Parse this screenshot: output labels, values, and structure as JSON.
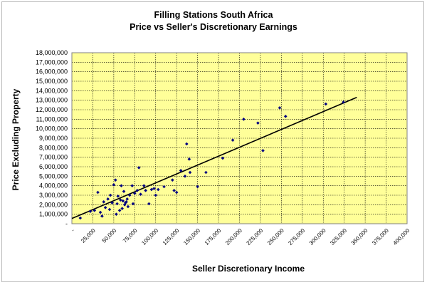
{
  "chart_data": {
    "type": "scatter",
    "title": "Filling Stations South Africa",
    "subtitle": "Price vs Seller's Discretionary Earnings",
    "xlabel": "Seller Discretionary Income",
    "ylabel": "Price Excluding Property",
    "xlim": [
      0,
      400000
    ],
    "ylim": [
      0,
      18000000
    ],
    "x_ticks": [
      "-",
      "25,000",
      "50,000",
      "75,000",
      "100,000",
      "125,000",
      "150,000",
      "175,000",
      "200,000",
      "225,000",
      "250,000",
      "275,000",
      "300,000",
      "325,000",
      "350,000",
      "375,000",
      "400,000"
    ],
    "y_ticks": [
      "-",
      "1,000,000",
      "2,000,000",
      "3,000,000",
      "4,000,000",
      "5,000,000",
      "6,000,000",
      "7,000,000",
      "8,000,000",
      "9,000,000",
      "10,000,000",
      "11,000,000",
      "12,000,000",
      "13,000,000",
      "14,000,000",
      "15,000,000",
      "16,000,000",
      "17,000,000",
      "18,000,000"
    ],
    "grid": true,
    "plot_background": "#ffff99",
    "marker_color": "#000080",
    "trendline_color": "#000000",
    "trendline": {
      "x": [
        0,
        340000
      ],
      "y": [
        550000,
        13300000
      ]
    },
    "series": [
      {
        "x": [
          10000,
          22000,
          27000,
          31000,
          34000,
          36000,
          38000,
          40000,
          43000,
          45000,
          46000,
          48000,
          50000,
          52000,
          53000,
          54000,
          55000,
          57000,
          58000,
          59000,
          60000,
          61000,
          62000,
          63000,
          64000,
          65000,
          66000,
          67000,
          69000,
          72000,
          73000,
          75000,
          78000,
          80000,
          82000,
          86000,
          88000,
          92000,
          95000,
          98000,
          100000,
          103000,
          110000,
          120000,
          122000,
          125000,
          130000,
          135000,
          137000,
          140000,
          141000,
          150000,
          160000,
          180000,
          192000,
          205000,
          222000,
          228000,
          248000,
          255000,
          303000,
          324000
        ],
        "y": [
          600000,
          1300000,
          1400000,
          3300000,
          1200000,
          800000,
          2300000,
          1700000,
          2600000,
          1500000,
          3000000,
          2200000,
          4100000,
          4600000,
          1000000,
          2100000,
          2900000,
          1400000,
          2500000,
          4000000,
          1600000,
          2400000,
          3400000,
          2000000,
          2200000,
          2300000,
          2600000,
          1800000,
          3000000,
          4000000,
          2100000,
          3200000,
          3500000,
          5900000,
          3100000,
          4000000,
          3500000,
          2100000,
          3600000,
          3700000,
          3000000,
          3600000,
          3900000,
          4600000,
          3500000,
          3300000,
          5600000,
          5000000,
          8400000,
          6800000,
          5400000,
          3900000,
          5400000,
          6900000,
          8800000,
          11000000,
          10600000,
          7700000,
          12200000,
          11300000,
          12600000,
          12800000
        ]
      }
    ]
  }
}
